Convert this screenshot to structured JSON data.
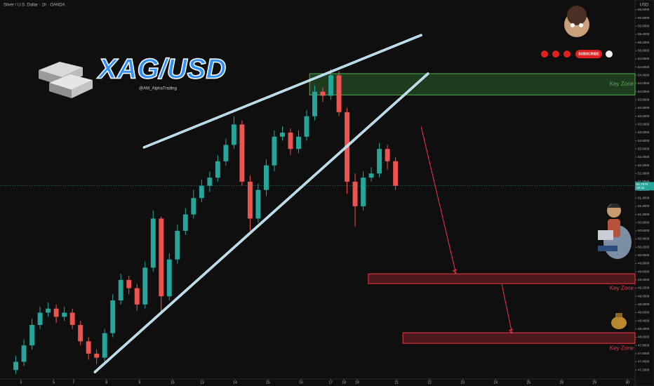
{
  "chart_data": {
    "type": "candlestick",
    "header": "Silver / U.S. Dollar · 1h · OANDA",
    "currency": "USD",
    "title": "XAG/USD",
    "subtitle": "@AM_AlphaTrading",
    "subscribe": "SUBSCRIBE",
    "up_color": "#26a69a",
    "down_color": "#ef5350",
    "xlim": [
      -0.43,
      18.83
    ],
    "ylim": [
      46.98,
      56.24
    ],
    "xticks": [
      {
        "value": 0.2,
        "label": "3"
      },
      {
        "value": 1.2,
        "label": "5"
      },
      {
        "value": 1.8,
        "label": "7"
      },
      {
        "value": 2.8,
        "label": "8"
      },
      {
        "value": 3.8,
        "label": "9"
      },
      {
        "value": 4.8,
        "label": "10"
      },
      {
        "value": 5.7,
        "label": "13"
      },
      {
        "value": 6.7,
        "label": "14"
      },
      {
        "value": 7.7,
        "label": "15"
      },
      {
        "value": 8.7,
        "label": "16"
      },
      {
        "value": 9.6,
        "label": "17"
      },
      {
        "value": 10.0,
        "label": "18"
      },
      {
        "value": 10.4,
        "label": "19"
      },
      {
        "value": 11.6,
        "label": "21"
      },
      {
        "value": 12.6,
        "label": "22"
      },
      {
        "value": 13.6,
        "label": "23"
      },
      {
        "value": 14.6,
        "label": "24"
      },
      {
        "value": 15.6,
        "label": "25"
      },
      {
        "value": 16.6,
        "label": "28"
      },
      {
        "value": 17.6,
        "label": "29"
      },
      {
        "value": 18.6,
        "label": "30"
      }
    ],
    "yticks": [
      {
        "value": 56.0,
        "label": "56.0000"
      },
      {
        "value": 55.8,
        "label": "55.8000"
      },
      {
        "value": 55.6,
        "label": "55.6000"
      },
      {
        "value": 55.4,
        "label": "55.4000"
      },
      {
        "value": 55.2,
        "label": "55.2000"
      },
      {
        "value": 55.0,
        "label": "55.0000"
      },
      {
        "value": 54.8,
        "label": "54.8000"
      },
      {
        "value": 54.6,
        "label": "54.6000"
      },
      {
        "value": 54.4,
        "label": "54.4000"
      },
      {
        "value": 54.2,
        "label": "54.2000"
      },
      {
        "value": 54.0,
        "label": "54.0000"
      },
      {
        "value": 53.8,
        "label": "53.8000"
      },
      {
        "value": 53.6,
        "label": "53.6000"
      },
      {
        "value": 53.4,
        "label": "53.4000"
      },
      {
        "value": 53.2,
        "label": "53.2000"
      },
      {
        "value": 53.0,
        "label": "53.0000"
      },
      {
        "value": 52.8,
        "label": "52.8000"
      },
      {
        "value": 52.6,
        "label": "52.6000"
      },
      {
        "value": 52.4,
        "label": "52.4000"
      },
      {
        "value": 52.2,
        "label": "52.2000"
      },
      {
        "value": 52.0,
        "label": "52.0000"
      },
      {
        "value": 51.8,
        "label": "51.8000"
      },
      {
        "value": 51.6,
        "label": "51.6000"
      },
      {
        "value": 51.4,
        "label": "51.4000"
      },
      {
        "value": 51.2,
        "label": "51.2000"
      },
      {
        "value": 51.0,
        "label": "51.0000"
      },
      {
        "value": 50.8,
        "label": "50.8000"
      },
      {
        "value": 50.6,
        "label": "50.6000"
      },
      {
        "value": 50.4,
        "label": "50.4000"
      },
      {
        "value": 50.2,
        "label": "50.2000"
      },
      {
        "value": 50.0,
        "label": "50.0000"
      },
      {
        "value": 49.8,
        "label": "49.8000"
      },
      {
        "value": 49.6,
        "label": "49.6000"
      },
      {
        "value": 49.4,
        "label": "49.4000"
      },
      {
        "value": 49.2,
        "label": "49.2000"
      },
      {
        "value": 49.0,
        "label": "49.0000"
      },
      {
        "value": 48.8,
        "label": "48.8000"
      },
      {
        "value": 48.6,
        "label": "48.6000"
      },
      {
        "value": 48.4,
        "label": "48.4000"
      },
      {
        "value": 48.2,
        "label": "48.2000"
      },
      {
        "value": 48.0,
        "label": "48.0000"
      },
      {
        "value": 47.8,
        "label": "47.8000"
      },
      {
        "value": 47.6,
        "label": "47.6000"
      },
      {
        "value": 47.4,
        "label": "47.4000"
      },
      {
        "value": 47.2,
        "label": "47.2000"
      }
    ],
    "x": [
      0.05,
      0.295,
      0.54,
      0.785,
      1.03,
      1.275,
      1.52,
      1.765,
      2.01,
      2.255,
      2.5,
      2.745,
      2.99,
      3.235,
      3.48,
      3.725,
      3.97,
      4.215,
      4.46,
      4.705,
      4.95,
      5.195,
      5.44,
      5.685,
      5.93,
      6.175,
      6.42,
      6.665,
      6.91,
      7.155,
      7.4,
      7.645,
      7.89,
      8.135,
      8.38,
      8.625,
      8.87,
      9.115,
      9.36,
      9.605,
      9.85,
      10.095,
      10.34,
      10.585,
      10.83,
      11.075,
      11.32,
      11.565
    ],
    "open": [
      47.2,
      47.4,
      47.8,
      48.3,
      48.6,
      48.7,
      48.5,
      48.6,
      48.3,
      47.9,
      47.6,
      47.5,
      48.1,
      48.9,
      49.4,
      49.2,
      48.8,
      49.7,
      50.9,
      49.0,
      49.9,
      50.6,
      51.0,
      51.4,
      51.7,
      51.9,
      52.3,
      52.7,
      53.2,
      51.8,
      50.9,
      51.6,
      52.2,
      52.9,
      53.0,
      52.6,
      52.9,
      53.4,
      54.0,
      53.9,
      54.4,
      53.5,
      51.8,
      51.2,
      51.9,
      52.0,
      52.6,
      52.3
    ],
    "high": [
      47.55,
      47.95,
      48.45,
      48.75,
      48.85,
      48.8,
      48.75,
      48.7,
      48.4,
      48.0,
      47.7,
      48.2,
      49.05,
      49.55,
      49.5,
      49.3,
      49.85,
      51.1,
      50.95,
      50.05,
      50.75,
      51.15,
      51.6,
      51.85,
      52.05,
      52.45,
      52.85,
      53.4,
      53.3,
      51.95,
      51.75,
      52.35,
      53.05,
      53.15,
      53.1,
      53.05,
      53.55,
      54.15,
      54.1,
      54.55,
      54.5,
      53.6,
      52.0,
      52.05,
      52.15,
      52.75,
      52.7,
      52.4
    ],
    "low": [
      47.1,
      47.3,
      47.7,
      48.2,
      48.5,
      48.35,
      48.4,
      48.2,
      47.8,
      47.45,
      47.35,
      47.4,
      48.0,
      48.8,
      49.05,
      48.65,
      48.7,
      49.6,
      48.6,
      48.9,
      49.8,
      50.5,
      50.9,
      51.3,
      51.55,
      51.8,
      52.2,
      52.6,
      51.7,
      50.6,
      50.8,
      51.45,
      52.05,
      52.8,
      52.45,
      52.5,
      52.8,
      53.3,
      53.75,
      53.8,
      53.4,
      51.5,
      50.7,
      51.1,
      51.8,
      51.9,
      52.1,
      51.6
    ],
    "close": [
      47.4,
      47.8,
      48.3,
      48.6,
      48.7,
      48.5,
      48.6,
      48.3,
      47.9,
      47.6,
      47.5,
      48.1,
      48.9,
      49.4,
      49.2,
      48.8,
      49.7,
      50.9,
      49.0,
      49.9,
      50.6,
      51.0,
      51.4,
      51.7,
      51.9,
      52.3,
      52.7,
      53.2,
      51.8,
      50.9,
      51.6,
      52.2,
      52.9,
      53.0,
      52.6,
      52.9,
      53.4,
      54.0,
      53.9,
      54.4,
      53.5,
      51.8,
      51.2,
      51.9,
      52.0,
      52.6,
      52.3,
      51.7
    ],
    "last_price": {
      "value": 51.707,
      "label": "51.7070",
      "countdown": "19:34"
    },
    "zones": [
      {
        "label": "Key Zone",
        "x0": 8.96,
        "low": 53.92,
        "high": 54.44,
        "color": "#4caf50"
      },
      {
        "label": "Key Zone",
        "x0": 10.74,
        "low": 49.31,
        "high": 49.55,
        "color": "#f23645"
      },
      {
        "label": "Key Zone",
        "x0": 11.79,
        "low": 47.85,
        "high": 48.11,
        "color": "#f23645"
      }
    ],
    "lines": [
      {
        "x": [
          3.94,
          12.34
        ],
        "y": [
          52.64,
          55.38
        ],
        "color": "#9fd8ef"
      },
      {
        "x": [
          2.45,
          12.55
        ],
        "y": [
          47.15,
          54.44
        ],
        "color": "#9fd8ef"
      }
    ],
    "arrows": [
      {
        "x": [
          12.34,
          13.4
        ],
        "y": [
          53.15,
          49.55
        ],
        "color": "#f23645"
      },
      {
        "x": [
          14.79,
          15.1
        ],
        "y": [
          49.29,
          48.09
        ],
        "color": "#f23645"
      }
    ]
  }
}
